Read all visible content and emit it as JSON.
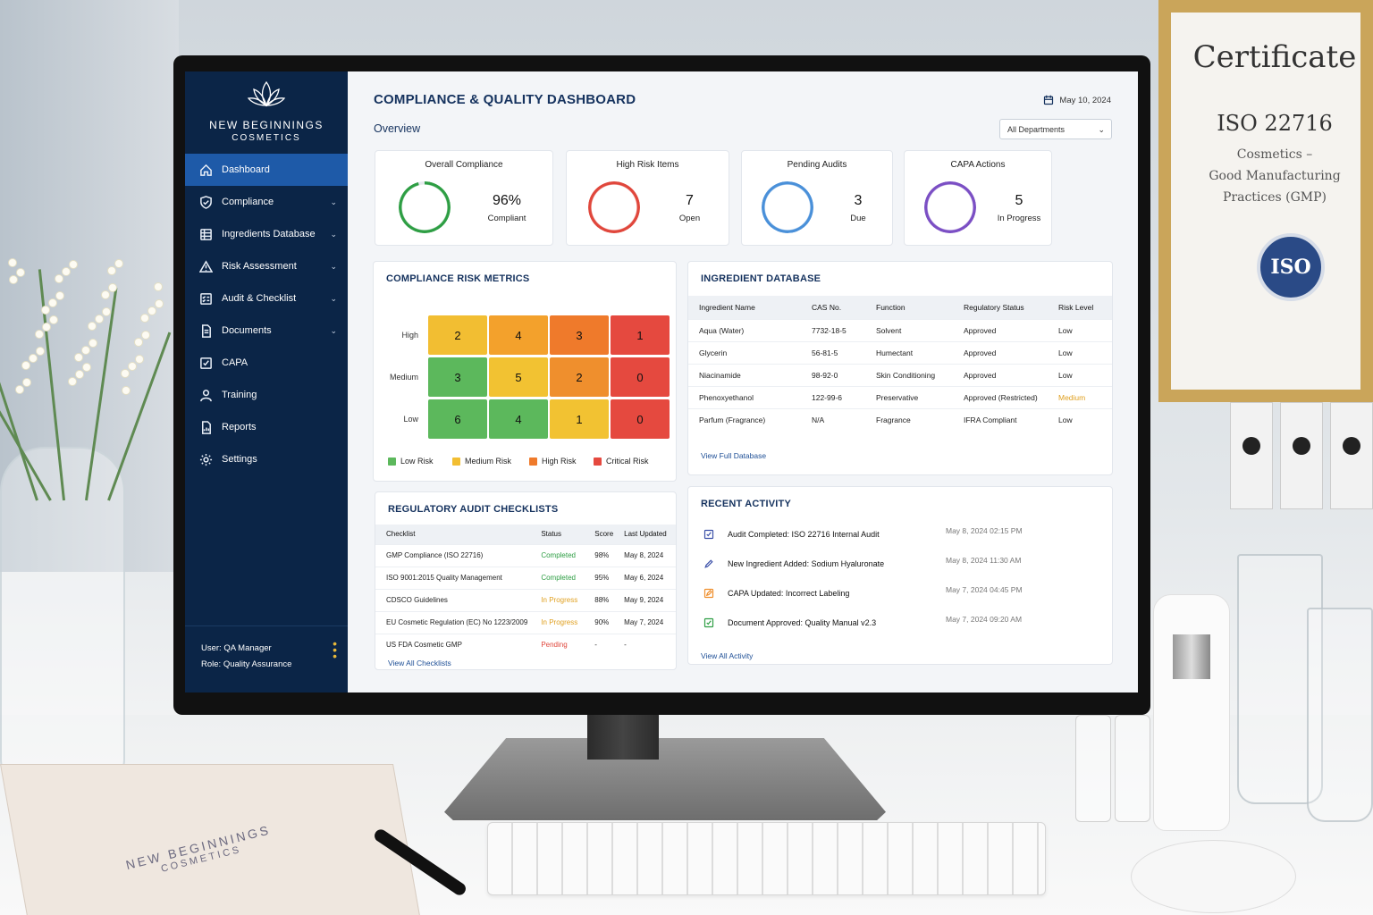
{
  "app": {
    "brand_name": "NEW BEGINNINGS",
    "brand_sub": "COSMETICS",
    "page_title": "COMPLIANCE & QUALITY DASHBOARD",
    "date": "May 10, 2024",
    "overview_label": "Overview",
    "department_filter": "All Departments"
  },
  "sidebar": {
    "items": [
      {
        "label": "Dashboard",
        "icon": "home-icon",
        "active": true,
        "has_chevron": false
      },
      {
        "label": "Compliance",
        "icon": "shield-icon",
        "active": false,
        "has_chevron": true
      },
      {
        "label": "Ingredients Database",
        "icon": "database-icon",
        "active": false,
        "has_chevron": true
      },
      {
        "label": "Risk Assessment",
        "icon": "warning-icon",
        "active": false,
        "has_chevron": true
      },
      {
        "label": "Audit & Checklist",
        "icon": "checklist-icon",
        "active": false,
        "has_chevron": true
      },
      {
        "label": "Documents",
        "icon": "document-icon",
        "active": false,
        "has_chevron": true
      },
      {
        "label": "CAPA",
        "icon": "check-square-icon",
        "active": false,
        "has_chevron": false
      },
      {
        "label": "Training",
        "icon": "user-icon",
        "active": false,
        "has_chevron": false
      },
      {
        "label": "Reports",
        "icon": "report-icon",
        "active": false,
        "has_chevron": false
      },
      {
        "label": "Settings",
        "icon": "gear-icon",
        "active": false,
        "has_chevron": false
      }
    ],
    "user": "User: QA Manager",
    "role": "Role: Quality Assurance"
  },
  "kpis": [
    {
      "title": "Overall Compliance",
      "value": "96%",
      "label": "Compliant",
      "color": "#2e9e44",
      "fill_fraction": 0.96
    },
    {
      "title": "High Risk Items",
      "value": "7",
      "label": "Open",
      "color": "#e0473c"
    },
    {
      "title": "Pending Audits",
      "value": "3",
      "label": "Due",
      "color": "#4a90d9"
    },
    {
      "title": "CAPA Actions",
      "value": "5",
      "label": "In Progress",
      "color": "#7b4fc4"
    }
  ],
  "risk_metrics": {
    "title": "COMPLIANCE RISK METRICS",
    "rows": [
      {
        "label": "High",
        "values": [
          "2",
          "4",
          "3",
          "1"
        ]
      },
      {
        "label": "Medium",
        "values": [
          "3",
          "5",
          "2",
          "0"
        ]
      },
      {
        "label": "Low",
        "values": [
          "6",
          "4",
          "1",
          "0"
        ]
      }
    ],
    "cell_colors": [
      [
        "#f2be32",
        "#f3a12c",
        "#ef7a2b",
        "#e5493f"
      ],
      [
        "#5cb85c",
        "#f2c232",
        "#ef8f2d",
        "#e5493f"
      ],
      [
        "#5cb85c",
        "#5cb85c",
        "#f2c232",
        "#e5493f"
      ]
    ],
    "legend": [
      {
        "label": "Low Risk",
        "color": "#5cb85c"
      },
      {
        "label": "Medium Risk",
        "color": "#f2be32"
      },
      {
        "label": "High Risk",
        "color": "#ef7a2b"
      },
      {
        "label": "Critical Risk",
        "color": "#e5493f"
      }
    ]
  },
  "ingredients": {
    "title": "INGREDIENT DATABASE",
    "columns": [
      "Ingredient Name",
      "CAS No.",
      "Function",
      "Regulatory Status",
      "Risk Level"
    ],
    "rows": [
      [
        "Aqua (Water)",
        "7732-18-5",
        "Solvent",
        "Approved",
        "Low"
      ],
      [
        "Glycerin",
        "56-81-5",
        "Humectant",
        "Approved",
        "Low"
      ],
      [
        "Niacinamide",
        "98-92-0",
        "Skin Conditioning",
        "Approved",
        "Low"
      ],
      [
        "Phenoxyethanol",
        "122-99-6",
        "Preservative",
        "Approved (Restricted)",
        "Medium"
      ],
      [
        "Parfum (Fragrance)",
        "N/A",
        "Fragrance",
        "IFRA Compliant",
        "Low"
      ]
    ],
    "view_link": "View Full Database",
    "medium_color": "#e0a020"
  },
  "checklists": {
    "title": "REGULATORY AUDIT CHECKLISTS",
    "columns": [
      "Checklist",
      "Status",
      "Score",
      "Last Updated"
    ],
    "rows": [
      {
        "name": "GMP Compliance (ISO 22716)",
        "status": "Completed",
        "score": "98%",
        "updated": "May 8, 2024",
        "status_color": "#2e9e44"
      },
      {
        "name": "ISO 9001:2015 Quality Management",
        "status": "Completed",
        "score": "95%",
        "updated": "May 6, 2024",
        "status_color": "#2e9e44"
      },
      {
        "name": "CDSCO Guidelines",
        "status": "In Progress",
        "score": "88%",
        "updated": "May 9, 2024",
        "status_color": "#e0a020"
      },
      {
        "name": "EU Cosmetic Regulation (EC) No 1223/2009",
        "status": "In Progress",
        "score": "90%",
        "updated": "May 7, 2024",
        "status_color": "#e0a020"
      },
      {
        "name": "US FDA Cosmetic GMP",
        "status": "Pending",
        "score": "-",
        "updated": "-",
        "status_color": "#e0473c"
      }
    ],
    "view_link": "View All Checklists"
  },
  "activity": {
    "title": "RECENT ACTIVITY",
    "items": [
      {
        "text": "Audit Completed: ISO 22716 Internal Audit",
        "time": "May 8, 2024  02:15 PM",
        "icon": "check-square-icon",
        "color": "#3a4fa8"
      },
      {
        "text": "New Ingredient Added: Sodium Hyaluronate",
        "time": "May 8, 2024  11:30 AM",
        "icon": "pen-icon",
        "color": "#3a4fa8"
      },
      {
        "text": "CAPA Updated: Incorrect Labeling",
        "time": "May 7, 2024  04:45 PM",
        "icon": "edit-icon",
        "color": "#ef8f2d"
      },
      {
        "text": "Document Approved: Quality Manual v2.3",
        "time": "May 7, 2024  09:20 AM",
        "icon": "approved-icon",
        "color": "#2e9e44"
      }
    ],
    "view_link": "View All Activity"
  },
  "scene": {
    "certificate_title": "Certificate",
    "certificate_standard": "ISO 22716",
    "certificate_sub_1": "Cosmetics –",
    "certificate_sub_2": "Good Manufacturing",
    "certificate_sub_3": "Practices (GMP)",
    "iso_seal": "ISO",
    "notebook_brand": "NEW BEGINNINGS",
    "notebook_sub": "COSMETICS"
  }
}
